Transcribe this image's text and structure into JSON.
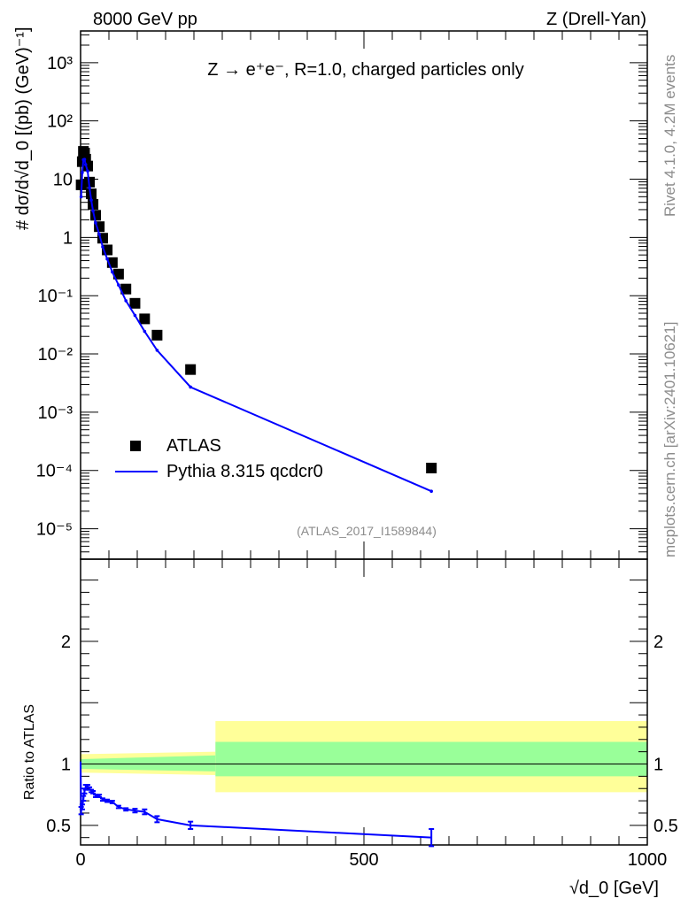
{
  "header": {
    "left": "8000 GeV pp",
    "right": "Z (Drell-Yan)"
  },
  "side": {
    "top": "Rivet 4.1.0,  4.2M events",
    "bottom": "mcplots.cern.ch [arXiv:2401.10621]"
  },
  "analysis_id": "(ATLAS_2017_I1589844)",
  "colors": {
    "data": "#000000",
    "mc": "#0000ff",
    "band_inner": "#99ff99",
    "band_outer": "#ffff99"
  },
  "chart_data": {
    "type": "scatter",
    "title": "Z → e⁺e⁻, R=1.0, charged particles only",
    "xlabel": "√d_0 [GeV]",
    "ylabel": "# dσ/d√d_0 [(pb) (GeV)⁻¹]",
    "ratio_ylabel": "Ratio to ATLAS",
    "xlim": [
      0,
      1000
    ],
    "ylim": [
      3e-06,
      3500
    ],
    "ratio_ylim": [
      0.34,
      2.67
    ],
    "xticks": [
      {
        "v": 0,
        "l": "0"
      },
      {
        "v": 500,
        "l": "500"
      },
      {
        "v": 1000,
        "l": "1000"
      }
    ],
    "yticks": [
      {
        "v": 1000,
        "l": "10³"
      },
      {
        "v": 100,
        "l": "10²"
      },
      {
        "v": 10,
        "l": "10"
      },
      {
        "v": 1,
        "l": "1"
      },
      {
        "v": 0.1,
        "l": "10⁻¹"
      },
      {
        "v": 0.01,
        "l": "10⁻²"
      },
      {
        "v": 0.001,
        "l": "10⁻³"
      },
      {
        "v": 0.0001,
        "l": "10⁻⁴"
      },
      {
        "v": 1e-05,
        "l": "10⁻⁵"
      }
    ],
    "ratio_yticks": [
      {
        "v": 0.5,
        "l": "0.5"
      },
      {
        "v": 1,
        "l": "1"
      },
      {
        "v": 2,
        "l": "2"
      }
    ],
    "legend": {
      "placement": "bottom-left",
      "data": "ATLAS",
      "mc": "Pythia 8.315 qcdcr0"
    },
    "x": [
      1,
      3,
      5,
      7,
      9,
      12.5,
      15.7,
      18.8,
      22,
      26.6,
      33,
      39,
      47,
      56,
      67,
      80,
      96,
      113,
      135,
      194,
      619
    ],
    "data": [
      8,
      20,
      30,
      28,
      22,
      16.8,
      8.9,
      5.6,
      3.7,
      2.4,
      1.53,
      0.97,
      0.61,
      0.37,
      0.235,
      0.13,
      0.074,
      0.04,
      0.021,
      0.0054,
      0.00011
    ],
    "ratio": [
      0.62,
      0.65,
      0.72,
      0.78,
      0.81,
      0.82,
      0.8,
      0.78,
      0.77,
      0.74,
      0.74,
      0.71,
      0.7,
      0.69,
      0.65,
      0.63,
      0.62,
      0.61,
      0.55,
      0.5,
      0.4
    ],
    "ratio_err": [
      0.03,
      0.02,
      0.02,
      0.02,
      0.02,
      0.01,
      0.01,
      0.01,
      0.01,
      0.01,
      0.01,
      0.01,
      0.01,
      0.01,
      0.01,
      0.01,
      0.015,
      0.02,
      0.025,
      0.03,
      0.07
    ],
    "bands": [
      {
        "x0": 0,
        "x1": 238,
        "outer": [
          0.93,
          1.08
        ],
        "inner": [
          0.96,
          1.04
        ],
        "outer_end": [
          0.91,
          1.1
        ],
        "inner_end": [
          0.94,
          1.07
        ]
      },
      {
        "x0": 238,
        "x1": 1000,
        "outer": [
          0.77,
          1.35
        ],
        "inner": [
          0.9,
          1.18
        ]
      }
    ]
  }
}
